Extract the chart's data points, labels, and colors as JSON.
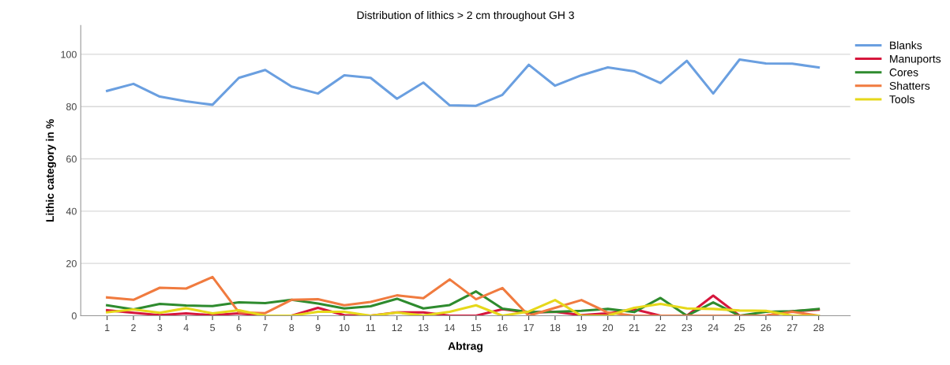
{
  "chart_data": {
    "type": "line",
    "title": "Distribution of lithics > 2 cm throughout GH 3",
    "xlabel": "Abtrag",
    "ylabel": "Lithic category in %",
    "categories": [
      "1",
      "2",
      "3",
      "4",
      "5",
      "6",
      "7",
      "8",
      "9",
      "10",
      "11",
      "12",
      "13",
      "14",
      "15",
      "16",
      "17",
      "18",
      "19",
      "20",
      "21",
      "22",
      "23",
      "24",
      "25",
      "26",
      "27",
      "28"
    ],
    "series": [
      {
        "name": "Blanks",
        "color": "#6a9fe0",
        "values": [
          86,
          88.7,
          83.8,
          82,
          80.7,
          91,
          94,
          87.7,
          85,
          92,
          91,
          83,
          89.2,
          80.5,
          80.3,
          84.5,
          96,
          88,
          92,
          95,
          93.5,
          89,
          97.5,
          85,
          98,
          96.5,
          96.4,
          95
        ]
      },
      {
        "name": "Manuports",
        "color": "#d6173d",
        "values": [
          2.1,
          1.1,
          0.2,
          0.9,
          0.2,
          0.9,
          0,
          0,
          3.0,
          0.2,
          0,
          1.3,
          1.3,
          0,
          0,
          2.5,
          1.2,
          1.5,
          0.2,
          0.9,
          2.5,
          0,
          0,
          7.7,
          0,
          0,
          1.7,
          2.3
        ]
      },
      {
        "name": "Cores",
        "color": "#2e8b2e",
        "values": [
          4.0,
          2.4,
          4.5,
          3.9,
          3.7,
          5.1,
          4.8,
          6.1,
          4.7,
          2.8,
          3.6,
          6.5,
          2.8,
          4.1,
          9.3,
          2.7,
          1.4,
          1.5,
          1.9,
          2.6,
          1.4,
          6.8,
          0,
          5.1,
          0,
          1.5,
          1.7,
          2.6
        ]
      },
      {
        "name": "Shatters",
        "color": "#f07b3f",
        "values": [
          7.0,
          6.1,
          10.7,
          10.4,
          14.8,
          1.3,
          1.0,
          6.1,
          6.3,
          4.0,
          5.3,
          7.8,
          6.7,
          13.9,
          6.3,
          10.6,
          0,
          3.0,
          6.0,
          1.2,
          0,
          0,
          0,
          0,
          0,
          0,
          1.5,
          0
        ]
      },
      {
        "name": "Tools",
        "color": "#e6d81a",
        "values": [
          1.3,
          2.4,
          1.1,
          2.9,
          0.9,
          2.1,
          0,
          0,
          1.5,
          1.5,
          0,
          1.2,
          0.1,
          1.5,
          4.0,
          0,
          1.6,
          6.0,
          0,
          0,
          3.0,
          4.5,
          2.8,
          2.6,
          2.0,
          1.9,
          0,
          0
        ]
      }
    ],
    "ylim": [
      0,
      111
    ],
    "yticks": [
      0,
      20,
      40,
      60,
      80,
      100
    ],
    "grid": "y",
    "legend": "top right",
    "marker": "none",
    "line_style": "solid"
  }
}
